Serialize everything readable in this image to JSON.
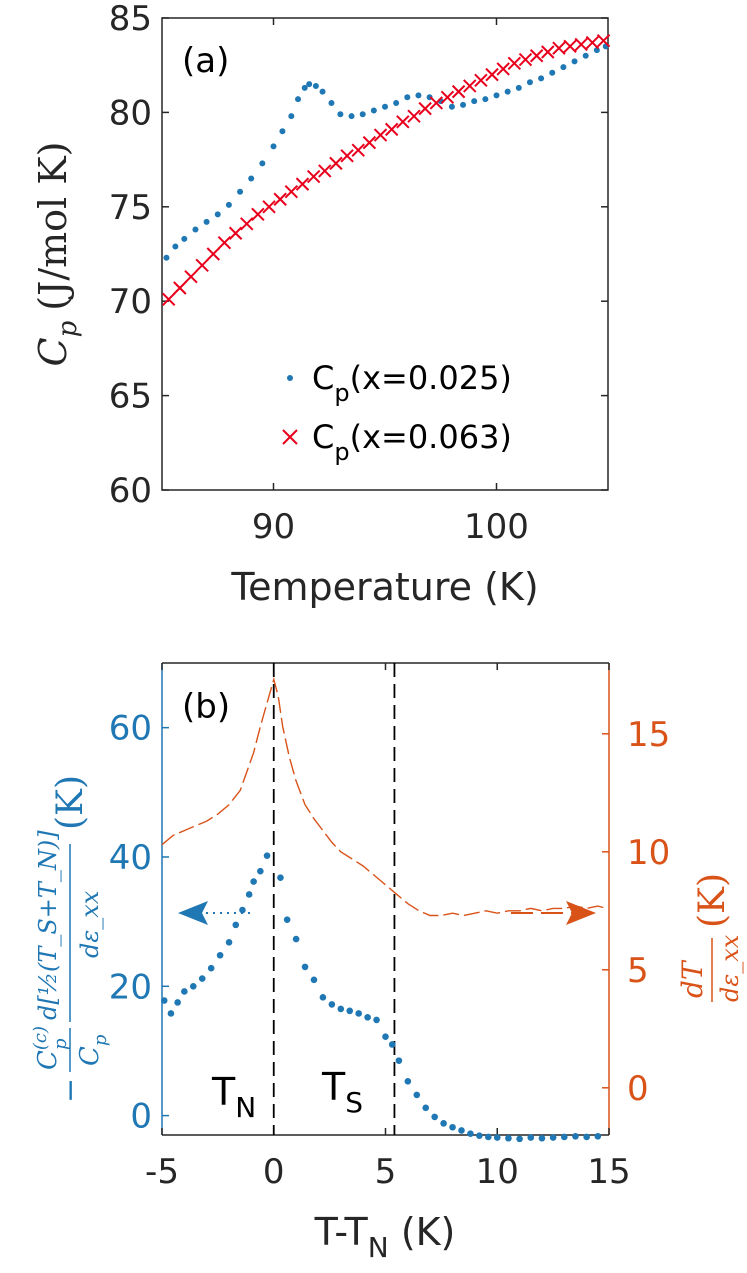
{
  "colors": {
    "blue": "#1f77b4",
    "red": "#e8001c",
    "orange": "#d95319",
    "axis": "#262626"
  },
  "chart_data": [
    {
      "type": "scatter",
      "panel_label": "(a)",
      "xlabel": "Temperature (K)",
      "ylabel": {
        "main": "C",
        "sub": "p",
        "unit": "(J/mol K)"
      },
      "xlim": [
        85,
        105
      ],
      "ylim": [
        60,
        85
      ],
      "xticks": [
        90,
        100
      ],
      "yticks": [
        60,
        65,
        70,
        75,
        80,
        85
      ],
      "legend_position": "lower-right",
      "series": [
        {
          "name": "C_p(x=0.025)",
          "legend_text": {
            "main": "C",
            "sub": "p",
            "rest": "(x=0.025)"
          },
          "marker": "dot",
          "x": [
            85.2,
            85.6,
            86.0,
            86.5,
            87.0,
            87.5,
            88.0,
            88.5,
            89.0,
            89.5,
            90.0,
            90.4,
            90.8,
            91.1,
            91.4,
            91.6,
            91.9,
            92.2,
            92.6,
            93.0,
            93.5,
            94.0,
            94.5,
            95.0,
            95.5,
            96.0,
            96.5,
            97.0,
            97.5,
            98.0,
            98.5,
            99.0,
            99.5,
            100.0,
            100.5,
            101.0,
            101.5,
            102.0,
            102.5,
            103.0,
            103.5,
            104.0,
            104.5,
            104.9
          ],
          "y": [
            72.3,
            72.9,
            73.3,
            73.8,
            74.2,
            74.6,
            75.1,
            75.8,
            76.5,
            77.3,
            78.2,
            79.0,
            79.8,
            80.7,
            81.3,
            81.5,
            81.4,
            81.1,
            80.5,
            79.9,
            79.8,
            79.9,
            80.1,
            80.3,
            80.5,
            80.8,
            80.9,
            80.8,
            80.6,
            80.3,
            80.4,
            80.6,
            80.7,
            80.9,
            81.1,
            81.3,
            81.6,
            81.8,
            82.1,
            82.4,
            82.7,
            83.0,
            83.3,
            83.5
          ]
        },
        {
          "name": "C_p(x=0.063)",
          "legend_text": {
            "main": "C",
            "sub": "p",
            "rest": "(x=0.063)"
          },
          "marker": "x",
          "x": [
            85.3,
            85.8,
            86.3,
            86.8,
            87.3,
            87.8,
            88.3,
            88.8,
            89.3,
            89.8,
            90.3,
            90.8,
            91.3,
            91.8,
            92.3,
            92.8,
            93.3,
            93.8,
            94.3,
            94.8,
            95.3,
            95.8,
            96.3,
            96.8,
            97.3,
            97.8,
            98.3,
            98.8,
            99.3,
            99.8,
            100.3,
            100.8,
            101.3,
            101.8,
            102.3,
            102.8,
            103.3,
            103.8,
            104.3,
            104.8
          ],
          "y": [
            70.1,
            70.7,
            71.3,
            71.9,
            72.5,
            73.1,
            73.6,
            74.1,
            74.6,
            75.0,
            75.4,
            75.8,
            76.2,
            76.6,
            76.9,
            77.3,
            77.7,
            78.0,
            78.4,
            78.8,
            79.1,
            79.5,
            79.8,
            80.2,
            80.5,
            80.8,
            81.1,
            81.4,
            81.7,
            82.0,
            82.3,
            82.6,
            82.8,
            83.0,
            83.2,
            83.4,
            83.5,
            83.6,
            83.7,
            83.8
          ]
        }
      ]
    },
    {
      "type": "scatter",
      "panel_label": "(b)",
      "xlabel": {
        "main": "T-T",
        "sub": "N",
        "rest": " (K)"
      },
      "xlim": [
        -5,
        15
      ],
      "ylim_left": [
        -3,
        70
      ],
      "ylim_right": [
        -2,
        18
      ],
      "xticks": [
        -5,
        0,
        5,
        10,
        15
      ],
      "yticks_left": [
        0,
        20,
        40,
        60
      ],
      "yticks_right": [
        0,
        5,
        10,
        15
      ],
      "ylabel_left": {
        "prefix": "−",
        "frac_top": "C",
        "frac_top_sup": "(c)",
        "frac_top_sub": "p",
        "frac_bot": "C",
        "frac_bot_sub": "p",
        "deriv_top": "d[½(T_S+T_N)]",
        "deriv_bot": "dε_xx",
        "unit": "(K)"
      },
      "ylabel_right": {
        "top": "dT",
        "bottom": "dε_xx",
        "unit": "(K)"
      },
      "annotations": [
        {
          "text": "T",
          "sub": "N"
        },
        {
          "text": "T",
          "sub": "S"
        }
      ],
      "vlines": [
        0,
        5.4
      ],
      "series": [
        {
          "name": "C_p^(c)/C_p d[½(T_S+T_N)]/dε_xx",
          "axis": "left",
          "marker": "dot",
          "x": [
            -4.9,
            -4.6,
            -4.3,
            -4.0,
            -3.6,
            -3.2,
            -2.8,
            -2.4,
            -2.0,
            -1.7,
            -1.4,
            -1.1,
            -0.9,
            -0.6,
            -0.3,
            0.3,
            0.6,
            1.0,
            1.4,
            1.8,
            2.2,
            2.6,
            3.0,
            3.4,
            3.8,
            4.2,
            4.6,
            5.0,
            5.3,
            5.6,
            6.0,
            6.4,
            6.8,
            7.2,
            7.6,
            8.0,
            8.4,
            8.8,
            9.2,
            9.6,
            10.0,
            10.5,
            11.0,
            11.5,
            12.0,
            12.5,
            13.0,
            13.5,
            14.0,
            14.5
          ],
          "y": [
            17.8,
            15.8,
            17.5,
            19.2,
            20.0,
            21.2,
            22.8,
            24.8,
            26.8,
            29.5,
            31.8,
            34.2,
            36.2,
            37.8,
            40.2,
            36.8,
            30.3,
            27.3,
            23.0,
            21.0,
            18.3,
            17.2,
            16.5,
            16.2,
            15.8,
            15.2,
            14.8,
            12.2,
            11.0,
            8.5,
            5.3,
            3.2,
            1.2,
            -0.2,
            -1.2,
            -1.8,
            -2.3,
            -2.8,
            -3.1,
            -3.3,
            -3.4,
            -3.5,
            -3.6,
            -3.4,
            -3.5,
            -3.4,
            -3.3,
            -3.2,
            -3.3,
            -3.2
          ]
        },
        {
          "name": "dT/dε_xx",
          "axis": "right",
          "marker": "dashed-line",
          "x": [
            -5.0,
            -4.5,
            -4.0,
            -3.5,
            -3.0,
            -2.5,
            -2.0,
            -1.5,
            -1.2,
            -0.9,
            -0.6,
            -0.3,
            0.0,
            0.2,
            0.4,
            0.7,
            1.0,
            1.4,
            1.8,
            2.2,
            2.6,
            3.0,
            3.5,
            4.0,
            4.5,
            5.0,
            5.5,
            6.0,
            6.5,
            7.0,
            7.5,
            8.0,
            8.5,
            9.0,
            9.5,
            10.0,
            10.5,
            11.0,
            11.5,
            12.0,
            12.5,
            13.0,
            13.5,
            14.0,
            14.5,
            14.9
          ],
          "y": [
            10.3,
            10.7,
            10.9,
            11.1,
            11.3,
            11.6,
            12.0,
            12.6,
            13.4,
            14.2,
            15.3,
            16.3,
            17.3,
            16.6,
            15.3,
            14.0,
            13.0,
            12.0,
            11.4,
            10.9,
            10.4,
            10.0,
            9.7,
            9.4,
            9.0,
            8.6,
            8.2,
            7.8,
            7.5,
            7.3,
            7.3,
            7.4,
            7.3,
            7.4,
            7.5,
            7.4,
            7.5,
            7.5,
            7.6,
            7.5,
            7.6,
            7.6,
            7.7,
            7.6,
            7.7,
            7.6
          ]
        }
      ]
    }
  ]
}
